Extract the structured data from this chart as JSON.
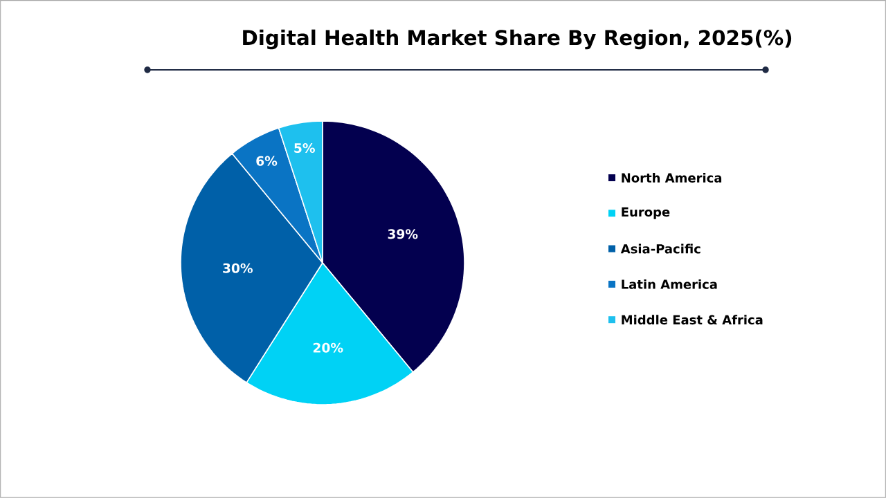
{
  "chart_data": {
    "type": "pie",
    "title": "Digital Health Market Share By Region, 2025(%)",
    "categories": [
      "North America",
      "Europe",
      "Asia-Pacific",
      "Latin America",
      "Middle East & Africa"
    ],
    "values": [
      39,
      20,
      30,
      6,
      5
    ],
    "colors": [
      "#03004f",
      "#00d2f5",
      "#0060a8",
      "#0a74c4",
      "#1ec0ee"
    ],
    "value_labels": [
      "39%",
      "20%",
      "30%",
      "6%",
      "5%"
    ],
    "legend": "right"
  }
}
